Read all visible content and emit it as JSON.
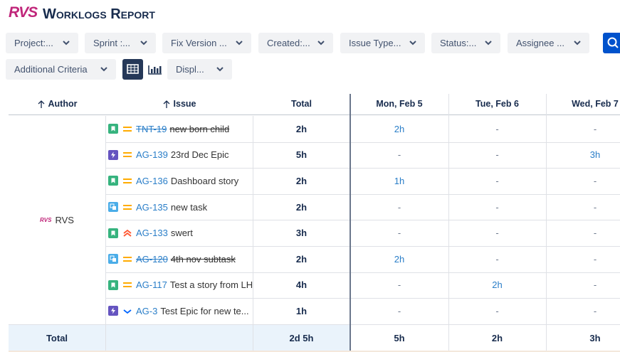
{
  "header": {
    "logo": "RVS",
    "title": "Worklogs Report"
  },
  "filters": [
    "Project:...",
    "Sprint :...",
    "Fix Version ...",
    "Created:...",
    "Issue Type...",
    "Status:...",
    "Assignee ..."
  ],
  "filters2": {
    "criteria": "Additional Criteria",
    "display": "Displ..."
  },
  "table": {
    "columns": [
      "Author",
      "Issue",
      "Total",
      "Mon, Feb 5",
      "Tue, Feb 6",
      "Wed, Feb 7"
    ],
    "author": "RVS",
    "rows": [
      {
        "key": "TNT-19",
        "summary": "new born child",
        "total": "2h",
        "days": [
          "2h",
          "-",
          "-"
        ]
      },
      {
        "key": "AG-139",
        "summary": "23rd Dec Epic",
        "total": "5h",
        "days": [
          "-",
          "-",
          "3h"
        ]
      },
      {
        "key": "AG-136",
        "summary": "Dashboard story",
        "total": "2h",
        "days": [
          "1h",
          "-",
          "-"
        ]
      },
      {
        "key": "AG-135",
        "summary": "new task",
        "total": "2h",
        "days": [
          "-",
          "-",
          "-"
        ]
      },
      {
        "key": "AG-133",
        "summary": "swert",
        "total": "3h",
        "days": [
          "-",
          "-",
          "-"
        ]
      },
      {
        "key": "AG-120",
        "summary": "4th nov subtask",
        "total": "2h",
        "days": [
          "2h",
          "-",
          "-"
        ]
      },
      {
        "key": "AG-117",
        "summary": "Test a story from LH",
        "total": "4h",
        "days": [
          "-",
          "2h",
          "-"
        ]
      },
      {
        "key": "AG-3",
        "summary": "Test Epic for new te...",
        "total": "1h",
        "days": [
          "-",
          "-",
          "-"
        ]
      }
    ],
    "totals": {
      "label": "Total",
      "total": "2d 5h",
      "days": [
        "5h",
        "2h",
        "3h"
      ]
    }
  }
}
